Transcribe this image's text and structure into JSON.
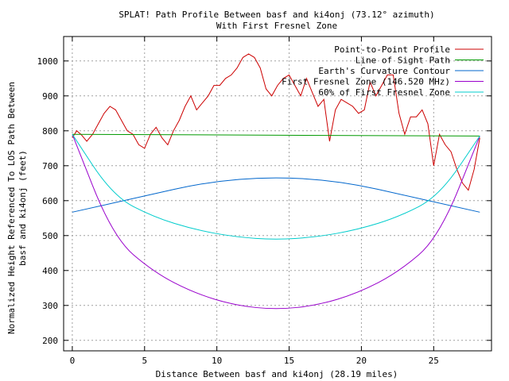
{
  "chart_data": {
    "type": "line",
    "title": "SPLAT! Path Profile Between basf and ki4onj (73.12° azimuth)",
    "subtitle": "With First Fresnel Zone",
    "xlabel": "Distance Between basf and ki4onj (28.19 miles)",
    "ylabel_line1": "Normalized Height Referenced To LOS Path Between",
    "ylabel_line2": "basf and ki4onj (feet)",
    "xlim": [
      -0.6,
      29
    ],
    "ylim": [
      170,
      1070
    ],
    "x_ticks": [
      0,
      5,
      10,
      15,
      20,
      25
    ],
    "x_tick_labels": [
      "0",
      "5",
      "10",
      "15",
      "20",
      "25"
    ],
    "y_ticks": [
      200,
      300,
      400,
      500,
      600,
      700,
      800,
      900,
      1000
    ],
    "y_tick_labels": [
      "200",
      "300",
      "400",
      "500",
      "600",
      "700",
      "800",
      "900",
      "1000"
    ],
    "grid": true,
    "legend_position": "top-right",
    "series": [
      {
        "name": "Point-to-Point Profile",
        "color": "#cc0000",
        "x": [
          0,
          0.3,
          0.6,
          1.0,
          1.4,
          1.8,
          2.2,
          2.6,
          3.0,
          3.4,
          3.8,
          4.2,
          4.6,
          5.0,
          5.4,
          5.8,
          6.2,
          6.6,
          7.0,
          7.4,
          7.8,
          8.2,
          8.6,
          9.0,
          9.4,
          9.8,
          10.2,
          10.6,
          11.0,
          11.4,
          11.8,
          12.2,
          12.6,
          13.0,
          13.4,
          13.8,
          14.2,
          14.6,
          15.0,
          15.4,
          15.8,
          16.2,
          16.6,
          17.0,
          17.4,
          17.8,
          18.2,
          18.6,
          19.0,
          19.4,
          19.8,
          20.2,
          20.6,
          21.0,
          21.4,
          21.8,
          22.2,
          22.6,
          23.0,
          23.4,
          23.8,
          24.2,
          24.6,
          25.0,
          25.4,
          25.8,
          26.2,
          26.6,
          27.0,
          27.4,
          27.8,
          28.19
        ],
        "values": [
          780,
          800,
          790,
          770,
          790,
          820,
          850,
          870,
          860,
          830,
          800,
          790,
          760,
          750,
          790,
          810,
          780,
          760,
          800,
          830,
          870,
          900,
          860,
          880,
          900,
          930,
          930,
          950,
          960,
          980,
          1010,
          1020,
          1010,
          980,
          920,
          900,
          930,
          950,
          960,
          930,
          900,
          950,
          910,
          870,
          890,
          770,
          860,
          890,
          880,
          870,
          850,
          860,
          940,
          900,
          930,
          960,
          960,
          850,
          790,
          840,
          840,
          860,
          820,
          700,
          790,
          760,
          740,
          690,
          650,
          630,
          690,
          780
        ]
      },
      {
        "name": "Line of Sight Path",
        "color": "#009900",
        "x": [
          0,
          28.19
        ],
        "values": [
          790,
          785
        ]
      },
      {
        "name": "Earth's Curvature Contour",
        "color": "#0066cc",
        "x": [
          0,
          14.1,
          28.19
        ],
        "values": [
          567,
          698,
          567
        ]
      },
      {
        "name": "First Fresnel Zone (146.520 MHz)",
        "color": "#9900cc",
        "x": [
          0,
          2.82,
          5.64,
          8.46,
          11.28,
          14.1,
          16.92,
          19.74,
          22.56,
          25.38,
          28.19
        ],
        "values": [
          790,
          495,
          395,
          335,
          300,
          288,
          300,
          335,
          395,
          495,
          785
        ]
      },
      {
        "name": "60% of First Fresnel Zone",
        "color": "#00cccc",
        "x": [
          0,
          2.82,
          5.64,
          8.46,
          11.28,
          14.1,
          16.92,
          19.74,
          22.56,
          25.38,
          28.19
        ],
        "values": [
          790,
          613,
          553,
          517,
          496,
          488,
          496,
          517,
          553,
          613,
          785
        ]
      }
    ]
  }
}
